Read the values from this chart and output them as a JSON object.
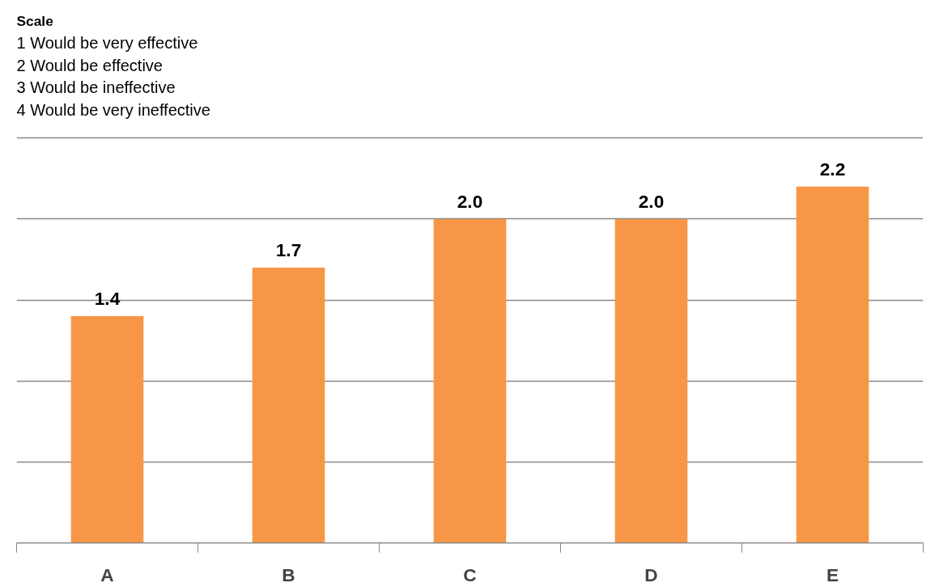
{
  "chart_data": {
    "type": "bar",
    "categories": [
      "A",
      "B",
      "C",
      "D",
      "E"
    ],
    "values": [
      1.4,
      1.7,
      2.0,
      2.0,
      2.2
    ],
    "color": "#f79646",
    "value_labels": [
      "1.4",
      "1.7",
      "2.0",
      "2.0",
      "2.2"
    ],
    "yticks": [
      {
        "value": 0,
        "label": null
      },
      {
        "value": 0.5,
        "label": null
      },
      {
        "value": 1,
        "label": null
      },
      {
        "value": 1.5,
        "label": null
      },
      {
        "value": 2,
        "label": null
      },
      {
        "value": 2.5,
        "label": null
      }
    ],
    "tick_labels": "x",
    "grid": "y",
    "annotations": [
      "Scale",
      "1 Would be very effective",
      "2 Would be effective",
      "3 Would be ineffective",
      "4 Would be very ineffective"
    ]
  }
}
